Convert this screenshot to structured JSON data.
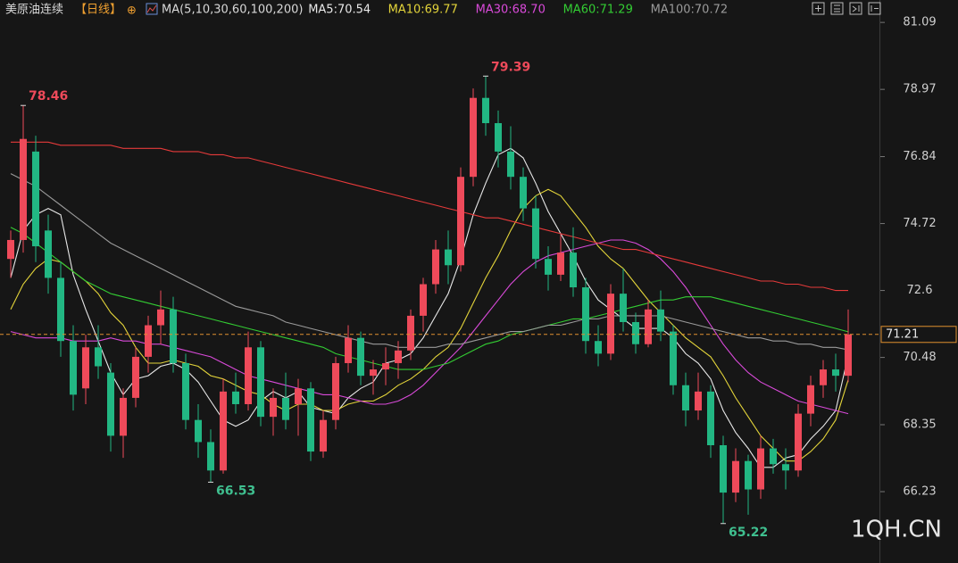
{
  "chart_data": {
    "type": "candlestick",
    "title": "美原油连续",
    "period": "【日线】",
    "crosshair_icon": "⊕",
    "ma_label": "MA(5,10,30,60,100,200)",
    "watermark": "1QH.CN",
    "ylim": [
      63.97,
      81.8
    ],
    "yticks": [
      66.23,
      68.35,
      70.48,
      72.6,
      74.72,
      76.84,
      78.97,
      81.09
    ],
    "up_color": "#ee4a5a",
    "down_color": "#22b783",
    "open": [
      73.6,
      74.2,
      77.0,
      74.5,
      73.0,
      71.0,
      69.5,
      70.8,
      70.0,
      68.0,
      69.2,
      70.5,
      71.5,
      72.0,
      70.3,
      68.5,
      67.8,
      66.9,
      69.4,
      69.0,
      70.8,
      68.6,
      69.2,
      69.0,
      69.5,
      67.5,
      68.5,
      70.3,
      71.1,
      69.9,
      70.1,
      70.3,
      70.7,
      71.8,
      72.8,
      73.9,
      73.4,
      76.2,
      78.7,
      77.9,
      77.0,
      76.2,
      75.2,
      73.6,
      73.1,
      73.8,
      72.7,
      71.0,
      70.6,
      72.5,
      71.6,
      70.9,
      72.0,
      71.3,
      69.6,
      68.8,
      69.4,
      67.7,
      66.2,
      67.2,
      66.3,
      67.6,
      67.1,
      66.9,
      68.7,
      69.6,
      70.1,
      69.9
    ],
    "high": [
      74.5,
      78.46,
      77.5,
      75.0,
      73.5,
      71.5,
      71.2,
      71.5,
      70.3,
      69.5,
      70.8,
      71.8,
      72.6,
      72.4,
      70.6,
      69.0,
      68.2,
      69.8,
      70.0,
      71.3,
      71.0,
      69.5,
      70.0,
      69.8,
      69.7,
      68.8,
      70.5,
      71.5,
      71.3,
      70.4,
      70.8,
      71.0,
      72.0,
      73.0,
      74.2,
      74.5,
      76.5,
      79.0,
      79.39,
      78.3,
      77.8,
      76.5,
      75.6,
      74.0,
      74.4,
      74.6,
      73.0,
      71.5,
      72.8,
      73.3,
      71.9,
      72.3,
      72.6,
      71.5,
      70.0,
      70.0,
      69.6,
      68.0,
      67.6,
      67.4,
      68.0,
      67.9,
      67.6,
      69.0,
      69.9,
      70.4,
      70.6,
      72.0
    ],
    "low": [
      73.0,
      73.8,
      73.5,
      72.5,
      70.5,
      68.8,
      69.0,
      69.8,
      67.5,
      67.3,
      68.9,
      70.0,
      70.9,
      70.0,
      68.2,
      67.3,
      66.53,
      66.8,
      68.7,
      68.8,
      68.3,
      68.0,
      68.2,
      68.0,
      67.2,
      67.3,
      68.2,
      70.0,
      69.6,
      69.3,
      69.6,
      69.8,
      70.4,
      71.3,
      72.5,
      72.8,
      73.2,
      75.9,
      77.5,
      76.5,
      75.8,
      74.8,
      73.3,
      72.6,
      72.9,
      72.4,
      70.6,
      70.2,
      70.4,
      71.3,
      70.6,
      70.8,
      71.0,
      69.3,
      68.3,
      68.5,
      67.3,
      65.22,
      65.9,
      65.5,
      66.0,
      66.8,
      66.3,
      66.7,
      68.3,
      69.2,
      69.4,
      69.7
    ],
    "close": [
      74.2,
      77.4,
      74.0,
      73.0,
      71.0,
      69.3,
      70.8,
      70.2,
      68.0,
      69.2,
      70.5,
      71.5,
      72.0,
      70.3,
      68.5,
      67.8,
      66.9,
      69.4,
      69.0,
      70.8,
      68.6,
      69.2,
      68.5,
      69.5,
      67.5,
      68.5,
      70.3,
      71.1,
      69.9,
      70.1,
      70.3,
      70.7,
      71.8,
      72.8,
      73.9,
      73.4,
      76.2,
      78.7,
      77.9,
      77.0,
      76.2,
      75.2,
      73.6,
      73.1,
      73.8,
      72.7,
      71.0,
      70.6,
      72.5,
      71.6,
      70.9,
      72.0,
      71.3,
      69.6,
      68.8,
      69.4,
      67.7,
      66.2,
      67.2,
      66.3,
      67.6,
      67.1,
      66.9,
      68.7,
      69.6,
      70.1,
      69.9,
      71.21
    ],
    "series": [
      {
        "name": "MA5:70.54",
        "color": "#e8e8e8",
        "values": [
          73.0,
          74.5,
          75.0,
          75.2,
          75.0,
          73.1,
          72.0,
          71.0,
          70.0,
          69.3,
          69.8,
          69.9,
          70.2,
          70.3,
          70.1,
          69.7,
          69.1,
          68.5,
          68.3,
          68.5,
          69.1,
          69.4,
          69.2,
          69.4,
          68.9,
          68.8,
          68.7,
          69.2,
          69.5,
          69.7,
          70.3,
          70.4,
          70.6,
          71.1,
          71.8,
          72.5,
          73.6,
          75.0,
          76.0,
          76.9,
          77.1,
          76.8,
          76.0,
          75.1,
          74.4,
          73.7,
          72.9,
          72.3,
          72.0,
          71.7,
          71.4,
          71.4,
          71.4,
          71.1,
          70.6,
          70.3,
          69.8,
          68.8,
          68.1,
          67.6,
          67.0,
          67.0,
          67.3,
          67.4,
          67.9,
          68.3,
          68.8,
          70.54
        ]
      },
      {
        "name": "MA10:69.77",
        "color": "#e3d43a",
        "values": [
          72.0,
          72.8,
          73.3,
          73.6,
          73.5,
          73.2,
          72.9,
          72.5,
          71.9,
          71.5,
          70.8,
          70.3,
          70.3,
          70.4,
          70.3,
          70.2,
          69.9,
          69.8,
          69.6,
          69.4,
          69.3,
          69.0,
          68.8,
          69.0,
          69.0,
          68.8,
          68.8,
          69.0,
          69.1,
          69.1,
          69.3,
          69.6,
          69.8,
          70.1,
          70.5,
          70.8,
          71.4,
          72.2,
          73.0,
          73.7,
          74.5,
          75.2,
          75.6,
          75.8,
          75.6,
          75.1,
          74.6,
          74.0,
          73.6,
          73.3,
          72.8,
          72.3,
          71.9,
          71.5,
          71.1,
          70.8,
          70.5,
          69.9,
          69.2,
          68.6,
          68.0,
          67.6,
          67.2,
          67.2,
          67.5,
          67.9,
          68.5,
          69.77
        ]
      },
      {
        "name": "MA30:68.70",
        "color": "#d94ad9",
        "values": [
          71.3,
          71.2,
          71.1,
          71.1,
          71.1,
          71.0,
          71.0,
          71.0,
          71.1,
          71.0,
          71.0,
          70.9,
          70.9,
          70.8,
          70.7,
          70.6,
          70.5,
          70.3,
          70.1,
          69.9,
          69.8,
          69.7,
          69.6,
          69.5,
          69.4,
          69.3,
          69.3,
          69.2,
          69.1,
          69.0,
          69.0,
          69.1,
          69.3,
          69.6,
          70.0,
          70.4,
          70.8,
          71.3,
          71.8,
          72.3,
          72.8,
          73.2,
          73.5,
          73.7,
          73.8,
          73.9,
          74.0,
          74.1,
          74.2,
          74.2,
          74.1,
          73.9,
          73.6,
          73.2,
          72.7,
          72.1,
          71.5,
          70.9,
          70.4,
          70.0,
          69.7,
          69.5,
          69.3,
          69.1,
          69.0,
          68.9,
          68.8,
          68.7
        ]
      },
      {
        "name": "MA60:71.29",
        "color": "#33cc33",
        "values": [
          74.6,
          74.4,
          74.1,
          73.8,
          73.5,
          73.2,
          72.9,
          72.7,
          72.5,
          72.4,
          72.3,
          72.2,
          72.1,
          72.0,
          71.9,
          71.8,
          71.7,
          71.6,
          71.5,
          71.4,
          71.3,
          71.2,
          71.1,
          71.0,
          70.9,
          70.8,
          70.6,
          70.5,
          70.4,
          70.3,
          70.2,
          70.1,
          70.1,
          70.1,
          70.2,
          70.3,
          70.5,
          70.7,
          70.9,
          71.0,
          71.2,
          71.3,
          71.4,
          71.5,
          71.6,
          71.7,
          71.7,
          71.8,
          71.9,
          72.0,
          72.1,
          72.2,
          72.3,
          72.3,
          72.4,
          72.4,
          72.4,
          72.3,
          72.2,
          72.1,
          72.0,
          71.9,
          71.8,
          71.7,
          71.6,
          71.5,
          71.4,
          71.29
        ]
      },
      {
        "name": "MA100:70.72",
        "color": "#9a9a9a",
        "values": [
          76.3,
          76.1,
          75.9,
          75.6,
          75.3,
          75.0,
          74.7,
          74.4,
          74.1,
          73.9,
          73.7,
          73.5,
          73.3,
          73.1,
          72.9,
          72.7,
          72.5,
          72.3,
          72.1,
          72.0,
          71.9,
          71.8,
          71.6,
          71.5,
          71.4,
          71.3,
          71.2,
          71.1,
          71.0,
          70.9,
          70.9,
          70.8,
          70.8,
          70.8,
          70.8,
          70.9,
          70.9,
          71.0,
          71.1,
          71.2,
          71.3,
          71.3,
          71.4,
          71.5,
          71.5,
          71.6,
          71.7,
          71.7,
          71.8,
          71.8,
          71.8,
          71.8,
          71.8,
          71.7,
          71.6,
          71.5,
          71.4,
          71.3,
          71.2,
          71.1,
          71.1,
          71.0,
          71.0,
          70.9,
          70.9,
          70.8,
          70.8,
          70.72
        ]
      },
      {
        "color": "#e53a3a",
        "values": [
          77.3,
          77.3,
          77.3,
          77.3,
          77.2,
          77.2,
          77.2,
          77.2,
          77.2,
          77.1,
          77.1,
          77.1,
          77.1,
          77.0,
          77.0,
          77.0,
          76.9,
          76.9,
          76.8,
          76.8,
          76.7,
          76.6,
          76.5,
          76.4,
          76.3,
          76.2,
          76.1,
          76.0,
          75.9,
          75.8,
          75.7,
          75.6,
          75.5,
          75.4,
          75.3,
          75.2,
          75.1,
          75.0,
          74.9,
          74.9,
          74.8,
          74.7,
          74.6,
          74.5,
          74.4,
          74.3,
          74.2,
          74.1,
          74.0,
          73.9,
          73.9,
          73.8,
          73.7,
          73.6,
          73.5,
          73.4,
          73.3,
          73.2,
          73.1,
          73.0,
          72.9,
          72.9,
          72.8,
          72.8,
          72.7,
          72.7,
          72.6,
          72.6
        ]
      }
    ],
    "annotations": [
      "78.46",
      "79.39",
      "66.53",
      "65.22"
    ],
    "last_price": 71.21
  }
}
